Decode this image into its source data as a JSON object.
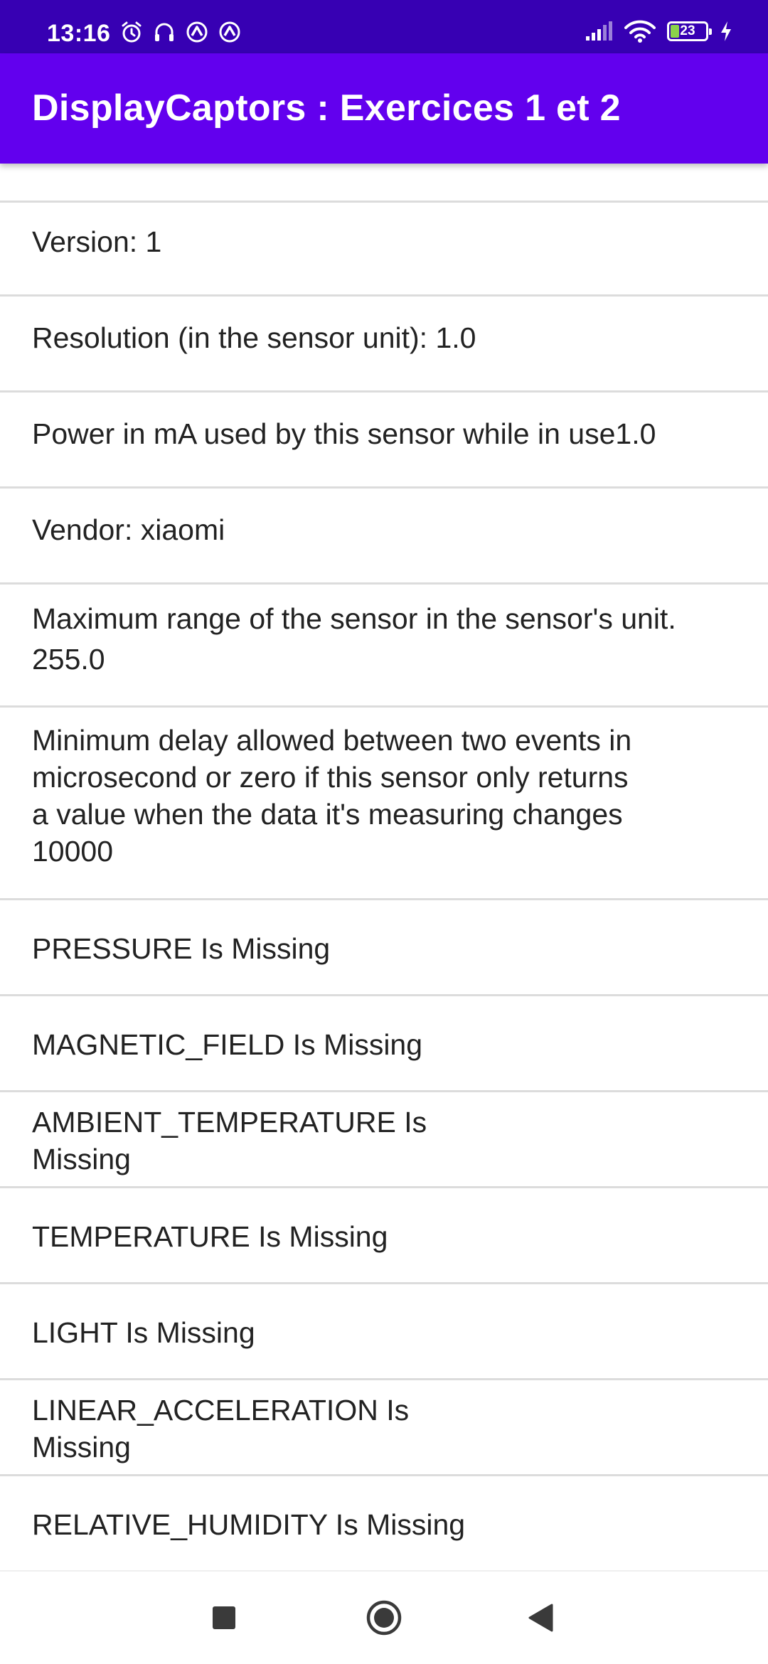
{
  "status_bar": {
    "time": "13:16",
    "battery_level": "23",
    "left_icons": [
      "alarm-icon",
      "headset-icon",
      "notification-icon",
      "notification-icon"
    ],
    "right_icons": [
      "signal-icon",
      "wifi-icon",
      "battery-icon",
      "charging-icon"
    ]
  },
  "app_bar": {
    "title": "DisplayCaptors : Exercices 1 et 2"
  },
  "sensor_details": {
    "version": "Version: 1",
    "resolution": "Resolution (in the sensor unit): 1.0",
    "power": "Power in mA used by this sensor while in use1.0",
    "vendor": "Vendor: xiaomi",
    "max_range": "Maximum range of the sensor in the sensor's unit.\n255.0",
    "min_delay": "Minimum delay allowed between two events in\nmicrosecond  or zero if this sensor only returns\na  value when the data it's measuring changes\n10000"
  },
  "missing_sensors": {
    "pressure": "PRESSURE Is Missing",
    "magnetic_field": "MAGNETIC_FIELD Is Missing",
    "ambient_temperature": "AMBIENT_TEMPERATURE Is\nMissing",
    "temperature": "TEMPERATURE Is Missing",
    "light": "LIGHT Is Missing",
    "linear_acceleration": "LINEAR_ACCELERATION Is\nMissing",
    "relative_humidity": "RELATIVE_HUMIDITY Is Missing"
  },
  "nav_bar": {
    "buttons": [
      "recents-button",
      "home-button",
      "back-button"
    ]
  },
  "colors": {
    "status_bar": "#3700b3",
    "app_bar": "#6200ee",
    "divider": "#dcdcdc",
    "text": "#222222"
  }
}
